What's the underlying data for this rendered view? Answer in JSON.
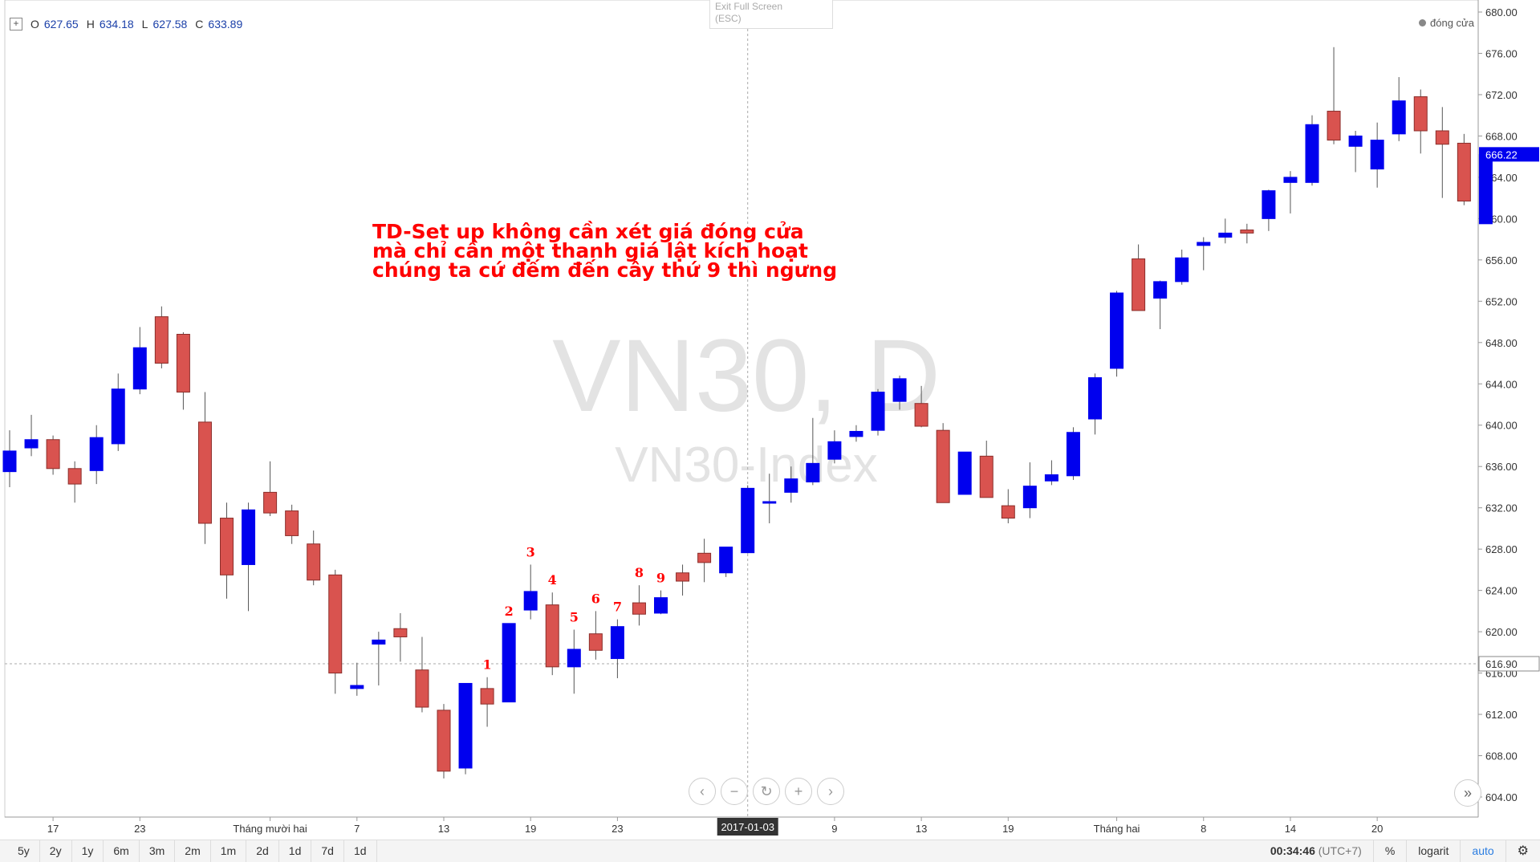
{
  "ohlc": {
    "o_label": "O",
    "o": "627.65",
    "h_label": "H",
    "h": "634.18",
    "l_label": "L",
    "l": "627.58",
    "c_label": "C",
    "c": "633.89"
  },
  "exit_fullscreen": {
    "line1": "Exit Full Screen",
    "line2": "(ESC)"
  },
  "legend": {
    "label": "đóng cửa"
  },
  "watermark": {
    "symbol": "VN30, D",
    "name": "VN30-Index"
  },
  "annotation": {
    "lines": [
      "TD-Set up không cần xét giá đóng cửa",
      "mà chỉ cần một thanh giá lật kích hoạt",
      "chúng ta cứ đếm đến cây thứ 9 thì ngưng"
    ]
  },
  "colors": {
    "up": "#0000ee",
    "down": "#d9534f",
    "count_labels": "#ff0000",
    "last_price_tag": "#0000ee",
    "crosshair_tag": "#333333"
  },
  "toolbar": {
    "ranges": [
      "5y",
      "2y",
      "1y",
      "6m",
      "3m",
      "2m",
      "1m",
      "2d",
      "1d",
      "7d",
      "1d"
    ],
    "clock": "00:34:46",
    "timezone": "(UTC+7)",
    "percent": "%",
    "log": "logarit",
    "auto": "auto"
  },
  "icons": {
    "plus": "plus-icon",
    "back": "chevron-left-icon",
    "zoom_out": "minus-icon",
    "reset": "refresh-icon",
    "zoom_in": "plus-icon",
    "forward": "chevron-right-icon",
    "scroll_end": "double-chevron-right-icon",
    "settings": "gear-icon"
  },
  "chart_data": {
    "type": "candlestick",
    "title": "",
    "ylim": [
      602,
      681
    ],
    "y_ticks": [
      604,
      608,
      612,
      616,
      620,
      624,
      628,
      632,
      636,
      640,
      644,
      648,
      652,
      656,
      660,
      664,
      668,
      672,
      676,
      680
    ],
    "x_ticks": [
      {
        "label": "17",
        "i": 2
      },
      {
        "label": "23",
        "i": 6
      },
      {
        "label": "Tháng mười hai",
        "i": 12
      },
      {
        "label": "7",
        "i": 16
      },
      {
        "label": "13",
        "i": 20
      },
      {
        "label": "19",
        "i": 24
      },
      {
        "label": "23",
        "i": 28
      },
      {
        "label": "9",
        "i": 38
      },
      {
        "label": "13",
        "i": 42
      },
      {
        "label": "19",
        "i": 46
      },
      {
        "label": "Tháng hai",
        "i": 51
      },
      {
        "label": "8",
        "i": 55
      },
      {
        "label": "14",
        "i": 59
      },
      {
        "label": "20",
        "i": 63
      }
    ],
    "crosshair": {
      "date_label": "2017-01-03",
      "i": 34,
      "price": 616.9,
      "price_label": "616.90"
    },
    "last_price": {
      "value": 666.22,
      "label": "666.22"
    },
    "td_counts": [
      {
        "label": "1",
        "i": 22
      },
      {
        "label": "2",
        "i": 23
      },
      {
        "label": "3",
        "i": 24
      },
      {
        "label": "4",
        "i": 25
      },
      {
        "label": "5",
        "i": 26
      },
      {
        "label": "6",
        "i": 27
      },
      {
        "label": "7",
        "i": 28
      },
      {
        "label": "8",
        "i": 29
      },
      {
        "label": "9",
        "i": 30
      }
    ],
    "candles": [
      {
        "o": 635.5,
        "h": 639.5,
        "l": 634,
        "c": 637.5
      },
      {
        "o": 637.8,
        "h": 641,
        "l": 637,
        "c": 638.6
      },
      {
        "o": 638.6,
        "h": 639,
        "l": 635.2,
        "c": 635.8
      },
      {
        "o": 635.8,
        "h": 636.5,
        "l": 632.5,
        "c": 634.3
      },
      {
        "o": 635.6,
        "h": 640,
        "l": 634.3,
        "c": 638.8
      },
      {
        "o": 638.2,
        "h": 645,
        "l": 637.5,
        "c": 643.5
      },
      {
        "o": 643.5,
        "h": 649.5,
        "l": 643,
        "c": 647.5
      },
      {
        "o": 650.5,
        "h": 651.5,
        "l": 645.5,
        "c": 646
      },
      {
        "o": 648.8,
        "h": 649,
        "l": 641.5,
        "c": 643.2
      },
      {
        "o": 640.3,
        "h": 643.2,
        "l": 628.5,
        "c": 630.5
      },
      {
        "o": 631,
        "h": 632.5,
        "l": 623.2,
        "c": 625.5
      },
      {
        "o": 626.5,
        "h": 632.5,
        "l": 622,
        "c": 631.8
      },
      {
        "o": 633.5,
        "h": 636.5,
        "l": 631.2,
        "c": 631.5
      },
      {
        "o": 631.7,
        "h": 632.3,
        "l": 628.5,
        "c": 629.3
      },
      {
        "o": 628.5,
        "h": 629.8,
        "l": 624.5,
        "c": 625
      },
      {
        "o": 625.5,
        "h": 626,
        "l": 614,
        "c": 616
      },
      {
        "o": 614.5,
        "h": 617,
        "l": 613.8,
        "c": 614.8
      },
      {
        "o": 618.8,
        "h": 620,
        "l": 614.8,
        "c": 619.2
      },
      {
        "o": 620.3,
        "h": 621.8,
        "l": 617.1,
        "c": 619.5
      },
      {
        "o": 616.3,
        "h": 619.5,
        "l": 612.2,
        "c": 612.7
      },
      {
        "o": 612.4,
        "h": 613,
        "l": 605.8,
        "c": 606.5
      },
      {
        "o": 606.8,
        "h": 615,
        "l": 606.2,
        "c": 615
      },
      {
        "o": 614.5,
        "h": 615.6,
        "l": 610.8,
        "c": 613
      },
      {
        "o": 613.2,
        "h": 620.8,
        "l": 613.2,
        "c": 620.8
      },
      {
        "o": 622.1,
        "h": 626.5,
        "l": 621.2,
        "c": 623.9
      },
      {
        "o": 622.6,
        "h": 623.8,
        "l": 615.8,
        "c": 616.6
      },
      {
        "o": 616.6,
        "h": 620.2,
        "l": 614,
        "c": 618.3
      },
      {
        "o": 619.8,
        "h": 622,
        "l": 617.3,
        "c": 618.2
      },
      {
        "o": 617.4,
        "h": 621.2,
        "l": 615.5,
        "c": 620.5
      },
      {
        "o": 622.8,
        "h": 624.5,
        "l": 620.6,
        "c": 621.7
      },
      {
        "o": 621.8,
        "h": 624,
        "l": 621.7,
        "c": 623.3
      },
      {
        "o": 625.7,
        "h": 626.5,
        "l": 623.5,
        "c": 624.9
      },
      {
        "o": 627.6,
        "h": 629,
        "l": 624.8,
        "c": 626.7
      },
      {
        "o": 625.7,
        "h": 628.2,
        "l": 625.3,
        "c": 628.2
      },
      {
        "o": 627.65,
        "h": 634.18,
        "l": 627.58,
        "c": 633.89
      },
      {
        "o": 632.6,
        "h": 635.3,
        "l": 630.5,
        "c": 632.6
      },
      {
        "o": 633.5,
        "h": 636,
        "l": 632.5,
        "c": 634.8
      },
      {
        "o": 634.5,
        "h": 640.7,
        "l": 634.2,
        "c": 636.3
      },
      {
        "o": 636.7,
        "h": 639.5,
        "l": 636.3,
        "c": 638.4
      },
      {
        "o": 638.9,
        "h": 640,
        "l": 638.4,
        "c": 639.4
      },
      {
        "o": 639.5,
        "h": 643.5,
        "l": 639,
        "c": 643.2
      },
      {
        "o": 642.3,
        "h": 644.8,
        "l": 641.5,
        "c": 644.5
      },
      {
        "o": 642.1,
        "h": 643.8,
        "l": 639.8,
        "c": 639.9
      },
      {
        "o": 639.5,
        "h": 640.2,
        "l": 632.5,
        "c": 632.5
      },
      {
        "o": 633.3,
        "h": 637.4,
        "l": 633.3,
        "c": 637.4
      },
      {
        "o": 637,
        "h": 638.5,
        "l": 633,
        "c": 633
      },
      {
        "o": 632.2,
        "h": 633.8,
        "l": 630.5,
        "c": 631
      },
      {
        "o": 632,
        "h": 636.4,
        "l": 631,
        "c": 634.1
      },
      {
        "o": 634.6,
        "h": 636.6,
        "l": 634.2,
        "c": 635.2
      },
      {
        "o": 635.1,
        "h": 639.8,
        "l": 634.7,
        "c": 639.3
      },
      {
        "o": 640.6,
        "h": 645,
        "l": 639.1,
        "c": 644.6
      },
      {
        "o": 645.5,
        "h": 653,
        "l": 644.7,
        "c": 652.8
      },
      {
        "o": 656.1,
        "h": 657.5,
        "l": 651.1,
        "c": 651.1
      },
      {
        "o": 652.3,
        "h": 654,
        "l": 649.3,
        "c": 653.9
      },
      {
        "o": 653.9,
        "h": 657,
        "l": 653.6,
        "c": 656.2
      },
      {
        "o": 657.4,
        "h": 658.2,
        "l": 655,
        "c": 657.7
      },
      {
        "o": 658.2,
        "h": 660,
        "l": 657.6,
        "c": 658.6
      },
      {
        "o": 658.9,
        "h": 659.5,
        "l": 657.6,
        "c": 658.6
      },
      {
        "o": 660,
        "h": 662.8,
        "l": 658.8,
        "c": 662.7
      },
      {
        "o": 663.5,
        "h": 664.6,
        "l": 660.5,
        "c": 664
      },
      {
        "o": 663.5,
        "h": 670,
        "l": 663.2,
        "c": 669.1
      },
      {
        "o": 670.4,
        "h": 676.6,
        "l": 667.2,
        "c": 667.6
      },
      {
        "o": 667,
        "h": 668.5,
        "l": 664.5,
        "c": 668
      },
      {
        "o": 664.8,
        "h": 669.3,
        "l": 663,
        "c": 667.6
      },
      {
        "o": 668.2,
        "h": 673.7,
        "l": 667.5,
        "c": 671.4
      },
      {
        "o": 671.8,
        "h": 672.5,
        "l": 666.3,
        "c": 668.5
      },
      {
        "o": 668.5,
        "h": 670.8,
        "l": 662,
        "c": 667.2
      },
      {
        "o": 667.3,
        "h": 668.2,
        "l": 661.3,
        "c": 661.7
      },
      {
        "o": 659.5,
        "h": 666.3,
        "l": 659.5,
        "c": 666.2
      }
    ]
  }
}
